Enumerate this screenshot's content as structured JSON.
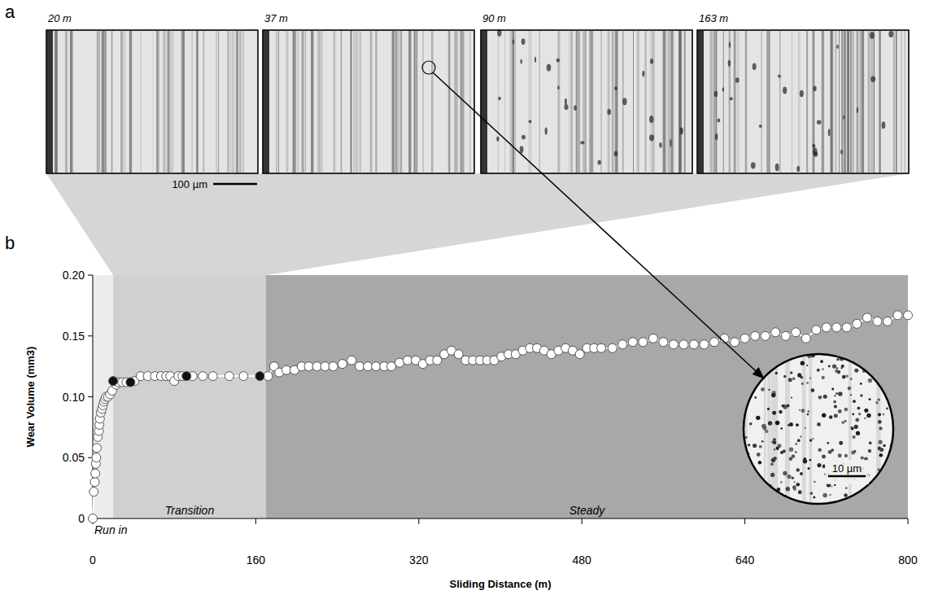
{
  "panel_a": {
    "letter": "a",
    "images": [
      {
        "label": "20  m"
      },
      {
        "label": "37 m"
      },
      {
        "label": "90 m"
      },
      {
        "label": "163 m"
      }
    ],
    "scale_bar": "100 µm"
  },
  "chart_data": {
    "panel_label": "b",
    "type": "scatter",
    "xlabel": "Sliding Distance (m)",
    "ylabel": "Wear Volume (mm3)",
    "xlim": [
      0,
      800
    ],
    "ylim": [
      0,
      0.2
    ],
    "xticks": [
      0,
      160,
      320,
      480,
      640,
      800
    ],
    "yticks": [
      0,
      0.05,
      {
        "value": 0.1,
        "label": "0.10"
      },
      0.15,
      {
        "value": 0.2,
        "label": "0.20"
      }
    ],
    "regions": [
      {
        "label": "Run in",
        "x": [
          0,
          20
        ]
      },
      {
        "label": "Transition",
        "x": [
          20,
          170
        ]
      },
      {
        "label": "Steady",
        "x": [
          170,
          800
        ]
      }
    ],
    "series": [
      {
        "color": "#ffffff",
        "marker": "circle",
        "line_style": "solid",
        "x": [
          0,
          1,
          2,
          2.5,
          3,
          3.5,
          4,
          5,
          6,
          6.5,
          7,
          8,
          9,
          10,
          11,
          12,
          13,
          15,
          17,
          19,
          23,
          25,
          29,
          33,
          41,
          47,
          54,
          61,
          67,
          72,
          76,
          80,
          84,
          88,
          98,
          108,
          118,
          134,
          148,
          172,
          178,
          183,
          190,
          198,
          205,
          212,
          220,
          228,
          236,
          245,
          254,
          262,
          270,
          278,
          286,
          293,
          301,
          309,
          317,
          324,
          331,
          338,
          345,
          352,
          359,
          366,
          373,
          380,
          387,
          394,
          401,
          408,
          415,
          422,
          429,
          436,
          443,
          450,
          457,
          464,
          471,
          478,
          485,
          492,
          499,
          510,
          520,
          530,
          540,
          550,
          560,
          570,
          580,
          590,
          600,
          610,
          620,
          630,
          640,
          650,
          660,
          670,
          680,
          690,
          700,
          710,
          720,
          730,
          740,
          750,
          760,
          770,
          780,
          790,
          800
        ],
        "values": [
          0,
          0.022,
          0.03,
          0.037,
          0.045,
          0.05,
          0.058,
          0.067,
          0.072,
          0.077,
          0.082,
          0.087,
          0.09,
          0.093,
          0.096,
          0.098,
          0.1,
          0.1,
          0.102,
          0.105,
          0.11,
          0.112,
          0.112,
          0.112,
          0.113,
          0.117,
          0.117,
          0.117,
          0.117,
          0.117,
          0.117,
          0.113,
          0.117,
          0.117,
          0.117,
          0.117,
          0.117,
          0.117,
          0.117,
          0.117,
          0.125,
          0.12,
          0.122,
          0.122,
          0.125,
          0.125,
          0.125,
          0.125,
          0.125,
          0.127,
          0.13,
          0.125,
          0.125,
          0.125,
          0.125,
          0.125,
          0.128,
          0.13,
          0.13,
          0.127,
          0.13,
          0.13,
          0.135,
          0.138,
          0.135,
          0.13,
          0.13,
          0.13,
          0.13,
          0.13,
          0.133,
          0.135,
          0.135,
          0.138,
          0.14,
          0.14,
          0.138,
          0.135,
          0.138,
          0.14,
          0.138,
          0.135,
          0.14,
          0.14,
          0.14,
          0.14,
          0.143,
          0.145,
          0.145,
          0.148,
          0.145,
          0.143,
          0.143,
          0.143,
          0.143,
          0.145,
          0.148,
          0.145,
          0.148,
          0.15,
          0.15,
          0.153,
          0.15,
          0.153,
          0.148,
          0.155,
          0.157,
          0.157,
          0.157,
          0.16,
          0.165,
          0.162,
          0.162,
          0.167,
          0.167
        ]
      },
      {
        "color": "#111111",
        "marker": "circle",
        "line_style": "none",
        "x": [
          20,
          37,
          92,
          164
        ],
        "values": [
          0.113,
          0.112,
          0.117,
          0.117
        ]
      }
    ],
    "inset": {
      "scale_bar": "10 µm"
    }
  }
}
